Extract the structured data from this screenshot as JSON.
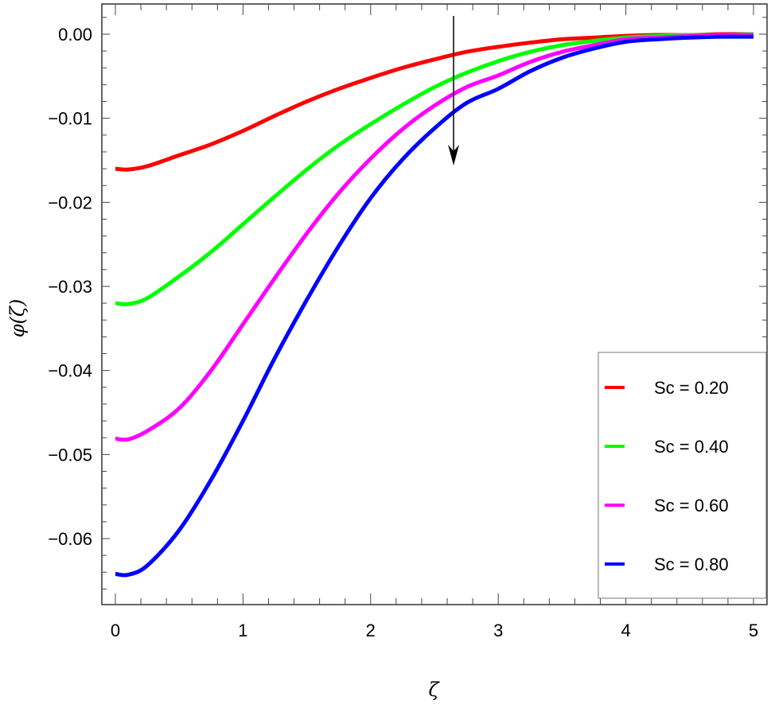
{
  "chart_data": {
    "type": "line",
    "title": "",
    "xlabel": "ζ",
    "ylabel": "φ(ζ)",
    "xlim": [
      0,
      5
    ],
    "ylim": [
      -0.0668,
      0.0036
    ],
    "grid": false,
    "legend_position": "lower right (inside)",
    "x_ticks": [
      0,
      1,
      2,
      3,
      4,
      5
    ],
    "x_tick_labels": [
      "0",
      "1",
      "2",
      "3",
      "4",
      "5"
    ],
    "y_ticks": [
      0.0,
      -0.01,
      -0.02,
      -0.03,
      -0.04,
      -0.05,
      -0.06
    ],
    "y_tick_labels": [
      "0.00",
      "-0.01",
      "-0.02",
      "-0.03",
      "-0.04",
      "-0.05",
      "-0.06"
    ],
    "x": [
      0,
      0.1,
      0.25,
      0.5,
      0.75,
      1.0,
      1.25,
      1.5,
      1.75,
      2.0,
      2.25,
      2.5,
      2.75,
      3.0,
      3.25,
      3.5,
      3.75,
      4.0,
      4.25,
      4.5,
      4.75,
      5.0
    ],
    "series": [
      {
        "name": "Sc = 0.20",
        "color": "#ff0000",
        "values": [
          -0.016,
          -0.0161,
          -0.0157,
          -0.0144,
          -0.0131,
          -0.0115,
          -0.0097,
          -0.008,
          -0.0065,
          -0.0052,
          -0.004,
          -0.003,
          -0.0021,
          -0.0015,
          -0.001,
          -0.0006,
          -0.0004,
          -0.0002,
          -0.0001,
          -0.0001,
          0.0,
          0.0
        ]
      },
      {
        "name": "Sc = 0.40",
        "color": "#00ff00",
        "values": [
          -0.032,
          -0.0321,
          -0.0314,
          -0.0288,
          -0.0259,
          -0.0226,
          -0.0193,
          -0.0161,
          -0.0132,
          -0.0107,
          -0.0084,
          -0.0063,
          -0.0046,
          -0.0032,
          -0.0021,
          -0.0013,
          -0.0008,
          -0.0004,
          -0.0002,
          -0.0001,
          -0.0001,
          0.0
        ]
      },
      {
        "name": "Sc = 0.60",
        "color": "#ff00ff",
        "values": [
          -0.0481,
          -0.0482,
          -0.0472,
          -0.0445,
          -0.04,
          -0.0345,
          -0.029,
          -0.0237,
          -0.0189,
          -0.0148,
          -0.0113,
          -0.0085,
          -0.0063,
          -0.0049,
          -0.0033,
          -0.0021,
          -0.0013,
          -0.0006,
          -0.0004,
          -0.0002,
          -0.0001,
          -0.0001
        ]
      },
      {
        "name": "Sc = 0.80",
        "color": "#0000ff",
        "values": [
          -0.0642,
          -0.0643,
          -0.0632,
          -0.059,
          -0.053,
          -0.046,
          -0.0385,
          -0.0316,
          -0.0252,
          -0.0195,
          -0.0149,
          -0.0112,
          -0.0082,
          -0.0065,
          -0.0044,
          -0.0028,
          -0.0017,
          -0.0009,
          -0.0006,
          -0.0004,
          -0.0003,
          -0.0003
        ]
      }
    ],
    "annotations": [
      {
        "type": "arrow",
        "x": 2.65,
        "y_from": 0.0022,
        "y_to": -0.0155,
        "direction": "down",
        "meaning": "φ decreases as Sc increases"
      }
    ]
  },
  "legend": {
    "items": [
      {
        "label": "Sc = 0.20",
        "color": "#ff0000"
      },
      {
        "label": "Sc = 0.40",
        "color": "#00ff00"
      },
      {
        "label": "Sc = 0.60",
        "color": "#ff00ff"
      },
      {
        "label": "Sc = 0.80",
        "color": "#0000ff"
      }
    ]
  },
  "axes": {
    "x_title": "ζ",
    "y_title": "φ(ζ)"
  }
}
